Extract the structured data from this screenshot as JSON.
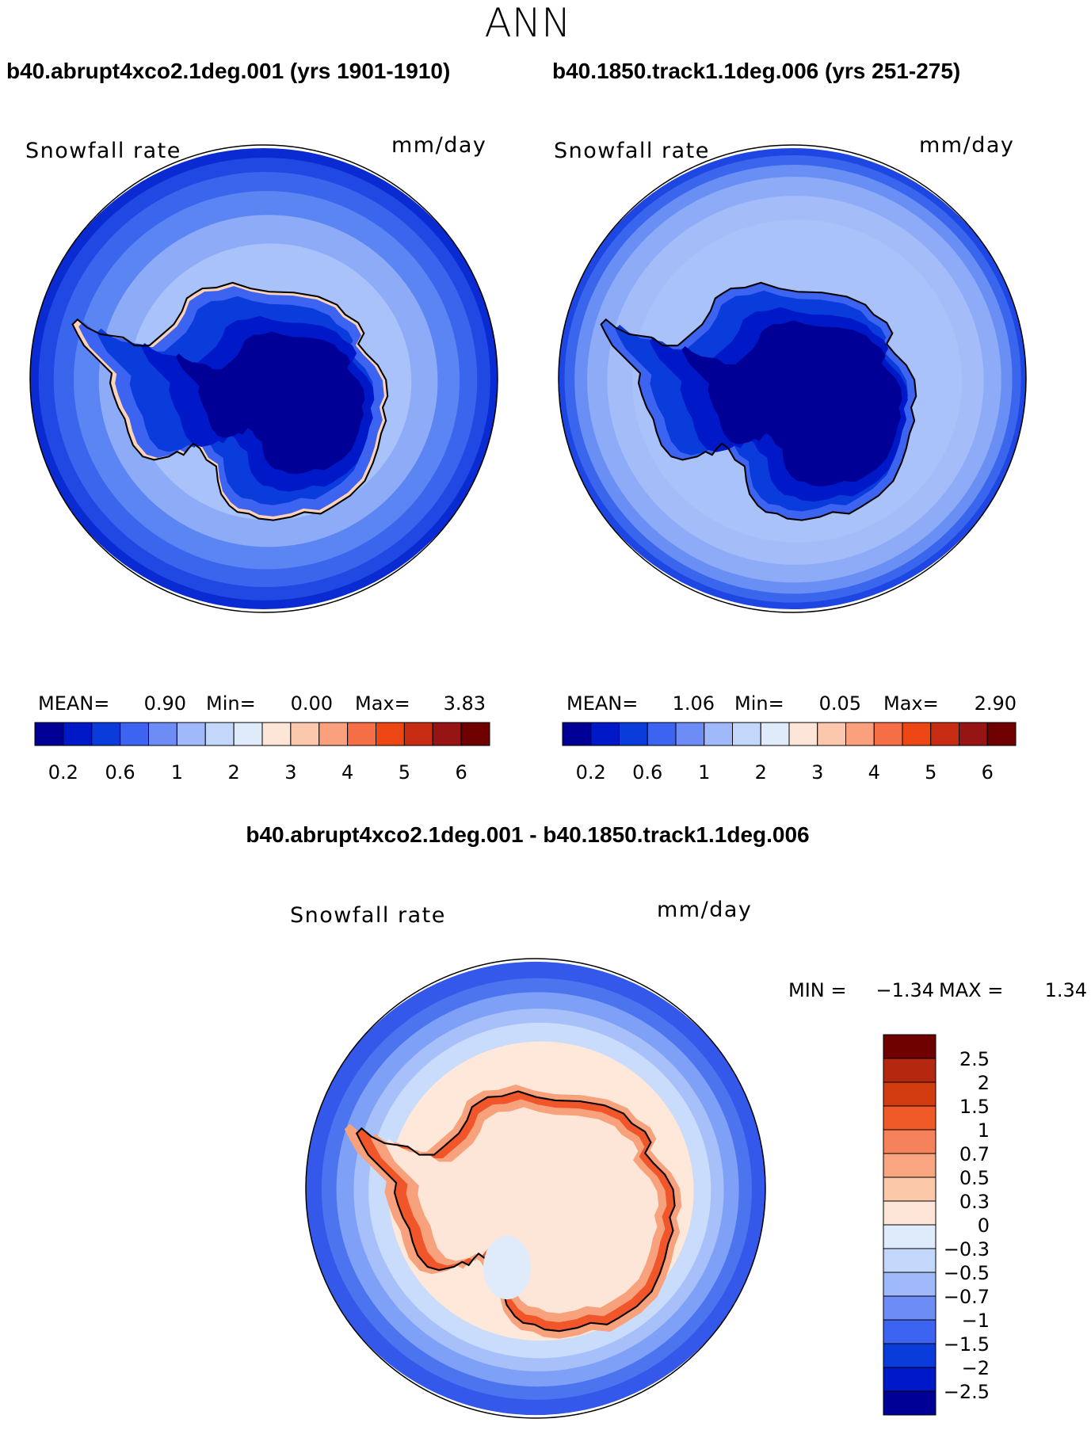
{
  "page_title": "ANN",
  "colors": {
    "cb_seq": [
      "#000096",
      "#0019c8",
      "#0a3cdc",
      "#3c64f0",
      "#6e8cf5",
      "#a0b9fa",
      "#c3d7fa",
      "#dfebfa",
      "#fde6d7",
      "#fcc8ad",
      "#faa07d",
      "#f56e46",
      "#eb4614",
      "#c82d14",
      "#961414",
      "#6e0000"
    ],
    "ocean_ring": [
      "#0a2ad2",
      "#2048e2",
      "#3a66ee",
      "#5b85f3",
      "#8eabf8",
      "#a9c2fa"
    ],
    "antarctica_ctl_ring": [
      "#0a35d8",
      "#0019c8",
      "#000096"
    ],
    "diff_ring": [
      "#3458ea",
      "#4d74ef",
      "#7ea0f6",
      "#a7c0fa",
      "#c9dcfb",
      "#fde8da"
    ],
    "diff_coast": [
      "#f0562a",
      "#f7a27c"
    ],
    "coast_line": "#000000"
  },
  "panels": [
    {
      "id": "exp",
      "case_title": "b40.abrupt4xco2.1deg.001 (yrs 1901-1910)",
      "variable": "Snowfall rate",
      "units": "mm/day",
      "stats": {
        "mean_label": "MEAN=",
        "mean": "0.90",
        "min_label": "Min=",
        "min": "0.00",
        "max_label": "Max=",
        "max": "3.83"
      }
    },
    {
      "id": "ctl",
      "case_title": "b40.1850.track1.1deg.006 (yrs 251-275)",
      "variable": "Snowfall rate",
      "units": "mm/day",
      "stats": {
        "mean_label": "MEAN=",
        "mean": "1.06",
        "min_label": "Min=",
        "min": "0.05",
        "max_label": "Max=",
        "max": "2.90"
      }
    }
  ],
  "colorbar_labels": [
    "0.2",
    "0.6",
    "1",
    "2",
    "3",
    "4",
    "5",
    "6"
  ],
  "difference": {
    "title": "b40.abrupt4xco2.1deg.001 - b40.1850.track1.1deg.006",
    "variable": "Snowfall rate",
    "units": "mm/day",
    "min_label": "MIN =",
    "min": "−1.34",
    "max_label": "MAX =",
    "max": "1.34",
    "colorbar_labels": [
      "2.5",
      "2",
      "1.5",
      "1",
      "0.7",
      "0.5",
      "0.3",
      "0",
      "−0.3",
      "−0.5",
      "−0.7",
      "−1",
      "−1.5",
      "−2",
      "−2.5"
    ],
    "colorbar_colors": [
      "#6e0000",
      "#b4280f",
      "#d23c0f",
      "#f05a28",
      "#f5825a",
      "#faa582",
      "#fcc8aa",
      "#fde6d7",
      "#dfebfa",
      "#c3d7fa",
      "#a0b9fa",
      "#6e8cf5",
      "#3c64f0",
      "#0a3cdc",
      "#0019c8",
      "#000096"
    ]
  }
}
